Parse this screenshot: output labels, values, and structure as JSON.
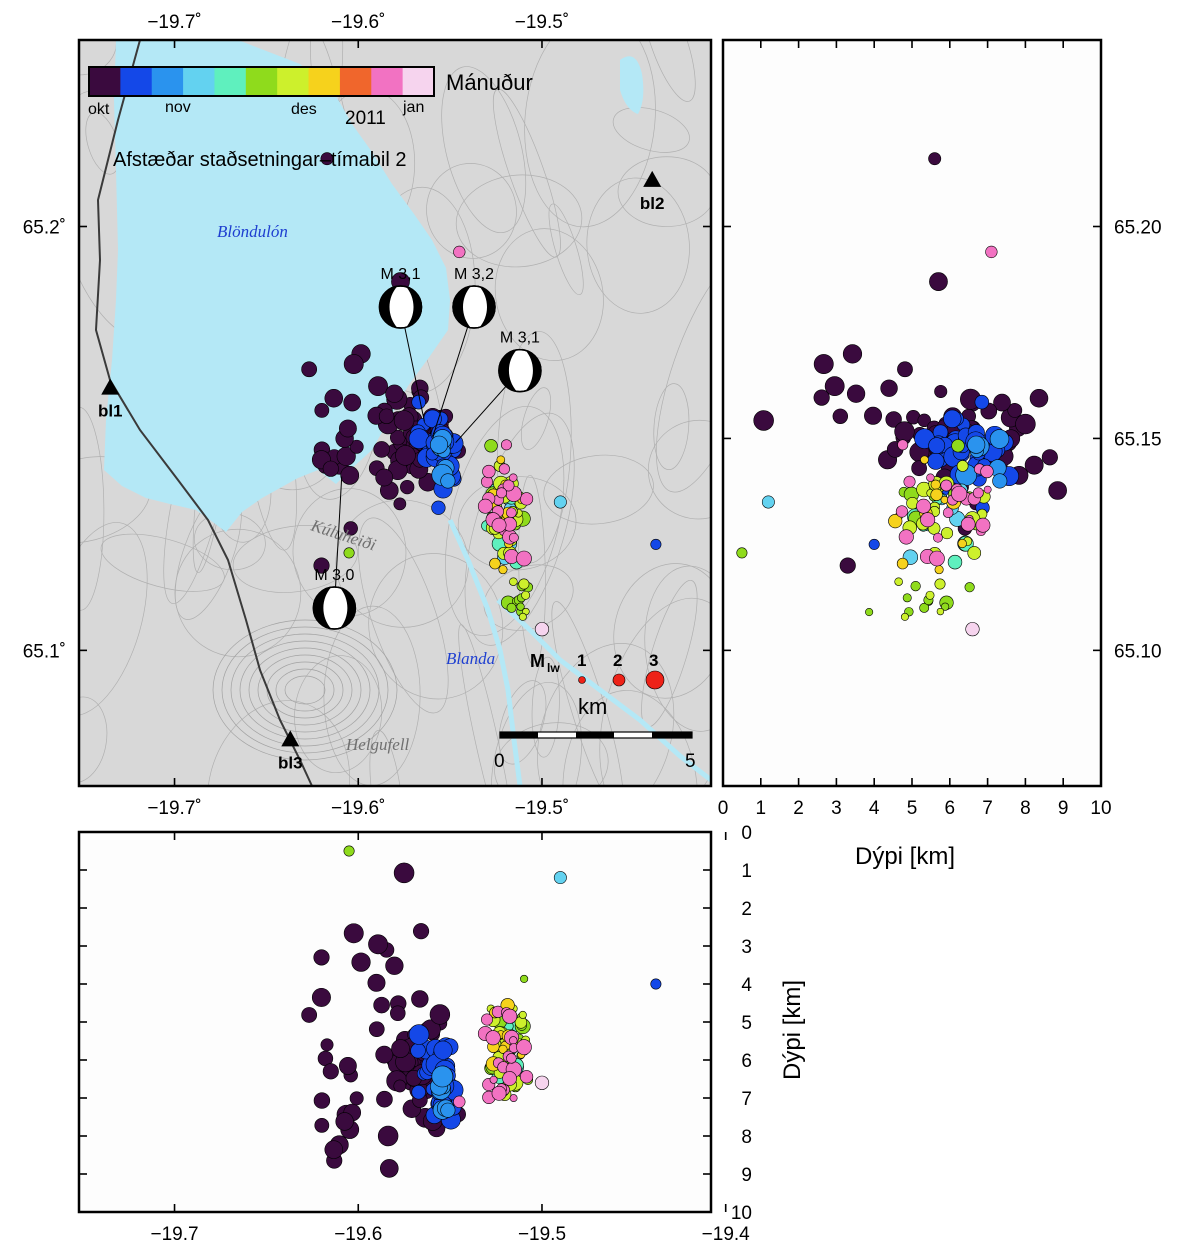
{
  "colors": {
    "months": [
      "#3a0a3e",
      "#1448e8",
      "#2a93ee",
      "#63d2f0",
      "#5ff0be",
      "#8fdb1c",
      "#cdf02c",
      "#f6d21c",
      "#f0662c",
      "#f272c2",
      "#f6d4ee"
    ],
    "water": "#b4e8f6",
    "land": "#d9d9d9",
    "magnitude": "#ee2218"
  },
  "colorbar": {
    "label": "Mánuður",
    "month_labels": [
      "okt",
      "nov",
      "des",
      "jan"
    ],
    "year_label": "2011"
  },
  "map": {
    "title": "Afstæðar staðsetningar–tímabil 2",
    "lake": "Blöndulón",
    "river": "Blanda",
    "places": [
      "Kúluheiði",
      "Helgufell"
    ],
    "stations": [
      {
        "name": "bl1",
        "lon": -19.735,
        "lat": 65.162
      },
      {
        "name": "bl2",
        "lon": -19.44,
        "lat": 65.211
      },
      {
        "name": "bl3",
        "lon": -19.637,
        "lat": 65.079
      }
    ],
    "focal_mechanisms": [
      {
        "label": "M 3,1",
        "lon": -19.577,
        "lat": 65.181,
        "epi_lon": -19.564,
        "epi_lat": 65.154
      },
      {
        "label": "M 3,2",
        "lon": -19.537,
        "lat": 65.181,
        "epi_lon": -19.559,
        "epi_lat": 65.151
      },
      {
        "label": "M 3,1",
        "lon": -19.512,
        "lat": 65.166,
        "epi_lon": -19.547,
        "epi_lat": 65.149
      },
      {
        "label": "M 3,0",
        "lon": -19.613,
        "lat": 65.11,
        "epi_lon": -19.609,
        "epi_lat": 65.141
      }
    ],
    "magnitude_legend": {
      "title": "M",
      "subscript": "lw",
      "values": [
        "1",
        "2",
        "3"
      ]
    },
    "scale_bar": {
      "unit": "km",
      "min": "0",
      "max": "5"
    }
  },
  "chart_data": [
    {
      "type": "scatter",
      "panel": "map",
      "xlabel": "",
      "ylabel": "",
      "xlim": [
        -19.752,
        -19.408
      ],
      "ylim": [
        65.068,
        65.244
      ],
      "xticks": [
        "−19.7˚",
        "−19.6˚",
        "−19.5˚"
      ],
      "yticks": [
        "65.1˚",
        "65.2˚"
      ],
      "series": [
        {
          "values": "epicentres coloured by month (okt 2010 – jan 2011)"
        }
      ]
    },
    {
      "type": "scatter",
      "panel": "latitude-depth",
      "xlabel": "Dýpi [km]",
      "ylabel": "",
      "xlim": [
        0,
        10
      ],
      "ylim": [
        65.068,
        65.244
      ],
      "xticks": [
        "0",
        "1",
        "2",
        "3",
        "4",
        "5",
        "6",
        "7",
        "8",
        "9",
        "10"
      ],
      "yticks": [
        "65.10",
        "65.15",
        "65.20"
      ]
    },
    {
      "type": "scatter",
      "panel": "longitude-depth",
      "xlabel": "",
      "ylabel": "Dýpi [km]",
      "xlim": [
        -19.752,
        -19.408
      ],
      "ylim": [
        10,
        0
      ],
      "xticks": [
        "−19.7",
        "−19.6",
        "−19.5",
        "−19.4"
      ],
      "yticks": [
        "0",
        "1",
        "2",
        "3",
        "4",
        "5",
        "6",
        "7",
        "8",
        "9",
        "10"
      ]
    }
  ]
}
